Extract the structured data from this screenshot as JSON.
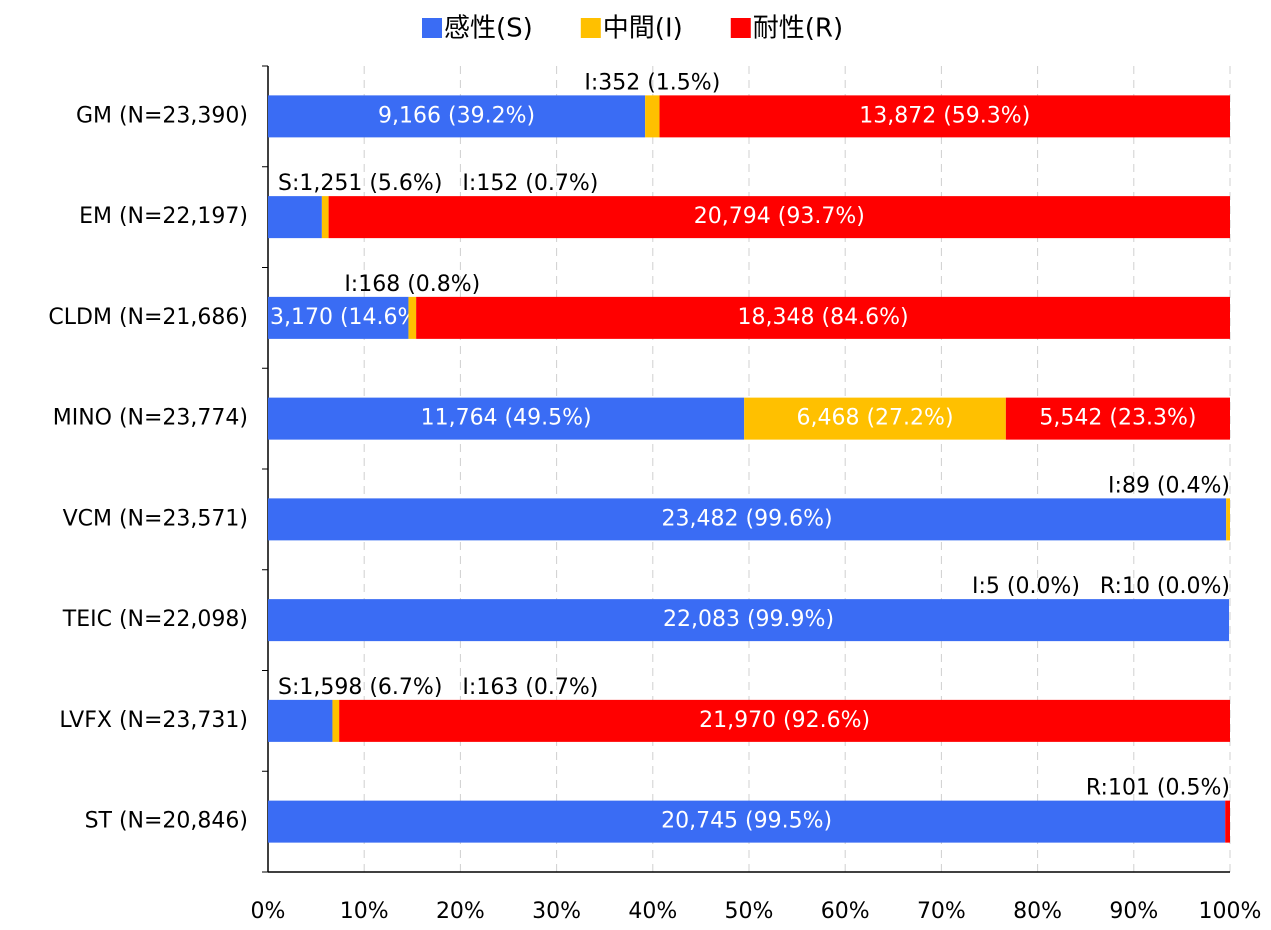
{
  "chart_data": {
    "type": "stacked-bar-horizontal",
    "categories": [
      "GM (N=23,390)",
      "EM (N=22,197)",
      "CLDM (N=21,686)",
      "MINO (N=23,774)",
      "VCM (N=23,571)",
      "TEIC (N=22,098)",
      "LVFX (N=23,731)",
      "ST (N=20,846)"
    ],
    "series": [
      {
        "name": "感性(S)",
        "color": "#3a6cf4",
        "values": [
          39.2,
          5.6,
          14.6,
          49.5,
          99.6,
          99.9,
          6.7,
          99.5
        ],
        "value_labels": [
          "9,166 (39.2%)",
          "S:1,251 (5.6%)",
          "3,170 (14.6%)",
          "11,764 (49.5%)",
          "23,482 (99.6%)",
          "22,083 (99.9%)",
          "S:1,598 (6.7%)",
          "20,745 (99.5%)"
        ]
      },
      {
        "name": "中間(I)",
        "color": "#ffc000",
        "values": [
          1.5,
          0.7,
          0.8,
          27.2,
          0.4,
          0.0,
          0.7,
          0
        ],
        "value_labels": [
          "I:352 (1.5%)",
          "I:152 (0.7%)",
          "I:168 (0.8%)",
          "6,468 (27.2%)",
          "I:89 (0.4%)",
          "I:5 (0.0%)",
          "I:163 (0.7%)",
          null
        ]
      },
      {
        "name": "耐性(R)",
        "color": "#ff0000",
        "values": [
          59.3,
          93.7,
          84.6,
          23.3,
          0,
          0.0,
          92.6,
          0.5
        ],
        "value_labels": [
          "13,872 (59.3%)",
          "20,794 (93.7%)",
          "18,348 (84.6%)",
          "5,542 (23.3%)",
          null,
          "R:10 (0.0%)",
          "21,970 (92.6%)",
          "R:101 (0.5%)"
        ]
      }
    ],
    "xlim": [
      0,
      100
    ],
    "xticks": [
      {
        "value": 0,
        "label": "0%"
      },
      {
        "value": 10,
        "label": "10%"
      },
      {
        "value": 20,
        "label": "20%"
      },
      {
        "value": 30,
        "label": "30%"
      },
      {
        "value": 40,
        "label": "40%"
      },
      {
        "value": 50,
        "label": "50%"
      },
      {
        "value": 60,
        "label": "60%"
      },
      {
        "value": 70,
        "label": "70%"
      },
      {
        "value": 80,
        "label": "80%"
      },
      {
        "value": 90,
        "label": "90%"
      },
      {
        "value": 100,
        "label": "100%"
      }
    ],
    "grid": true,
    "legend": "top"
  }
}
